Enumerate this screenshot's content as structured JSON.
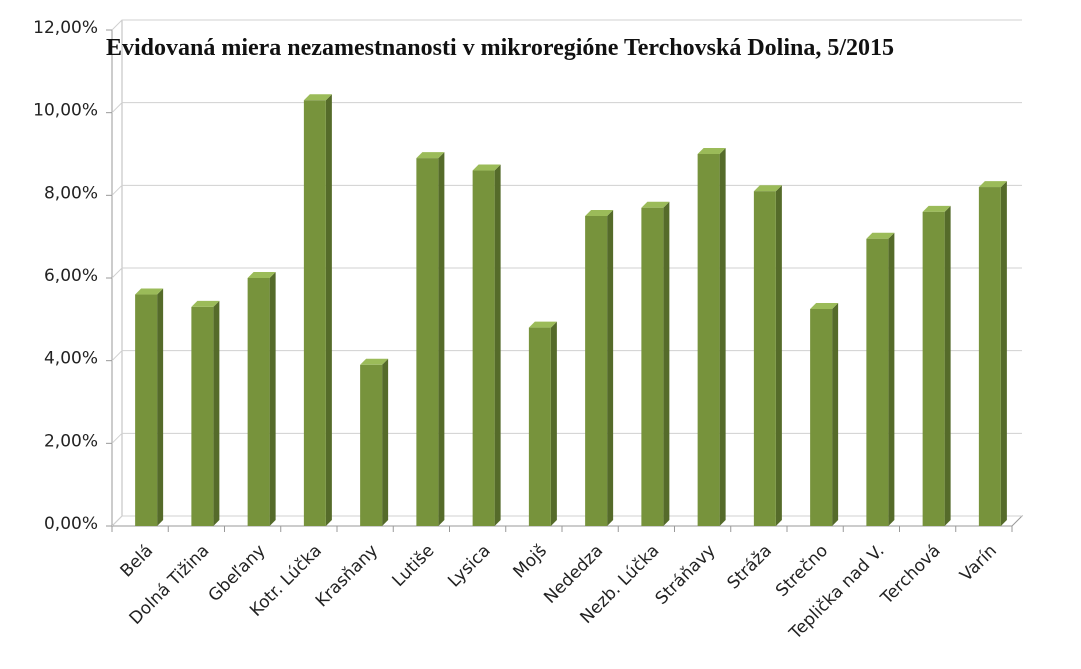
{
  "chart_data": {
    "type": "bar",
    "title": "Evidovaná miera nezamestnanosti v mikroregióne Terchovská Dolina, 5/2015",
    "categories": [
      "Belá",
      "Dolná Tižina",
      "Gbeľany",
      "Kotr. Lúčka",
      "Krasňany",
      "Lutiše",
      "Lysica",
      "Mojš",
      "Nededza",
      "Nezb. Lúčka",
      "Stráňavy",
      "Stráža",
      "Strečno",
      "Teplička nad V.",
      "Terchová",
      "Varín"
    ],
    "values": [
      5.6,
      5.3,
      6.0,
      10.3,
      3.9,
      8.9,
      8.6,
      4.8,
      7.5,
      7.7,
      9.0,
      8.1,
      5.25,
      6.95,
      7.6,
      8.2
    ],
    "color": "#77933c",
    "ylim": [
      0,
      12
    ],
    "yticks": [
      {
        "value": 0,
        "label": "0,00%"
      },
      {
        "value": 2,
        "label": "2,00%"
      },
      {
        "value": 4,
        "label": "4,00%"
      },
      {
        "value": 6,
        "label": "6,00%"
      },
      {
        "value": 8,
        "label": "8,00%"
      },
      {
        "value": 10,
        "label": "10,00%"
      },
      {
        "value": 12,
        "label": "12,00%"
      }
    ],
    "grid": true
  }
}
